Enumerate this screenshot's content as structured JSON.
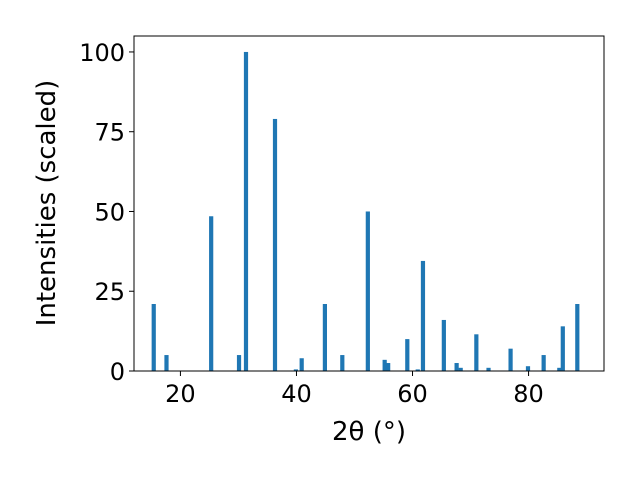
{
  "chart_data": {
    "type": "bar",
    "xlabel": "2θ (°)",
    "ylabel": "Intensities (scaled)",
    "xlim": [
      12,
      93
    ],
    "ylim": [
      0,
      105
    ],
    "xticks": [
      20,
      40,
      60,
      80
    ],
    "yticks": [
      0,
      25,
      50,
      75,
      100
    ],
    "grid": false,
    "bar_color": "#1f77b4",
    "x": [
      15.4,
      17.6,
      25.3,
      30.1,
      31.3,
      36.3,
      39.9,
      40.9,
      44.9,
      47.9,
      52.3,
      55.2,
      55.8,
      59.1,
      60.9,
      61.8,
      65.4,
      67.6,
      68.3,
      71.0,
      73.1,
      76.9,
      79.9,
      82.6,
      85.3,
      85.9,
      88.4
    ],
    "values": [
      21,
      5,
      48.5,
      5,
      100,
      79,
      0.5,
      4,
      21,
      5,
      50,
      3.5,
      2.5,
      10,
      0.5,
      34.5,
      16,
      2.5,
      1,
      11.5,
      1,
      7,
      1.5,
      5,
      1,
      14,
      21
    ]
  }
}
